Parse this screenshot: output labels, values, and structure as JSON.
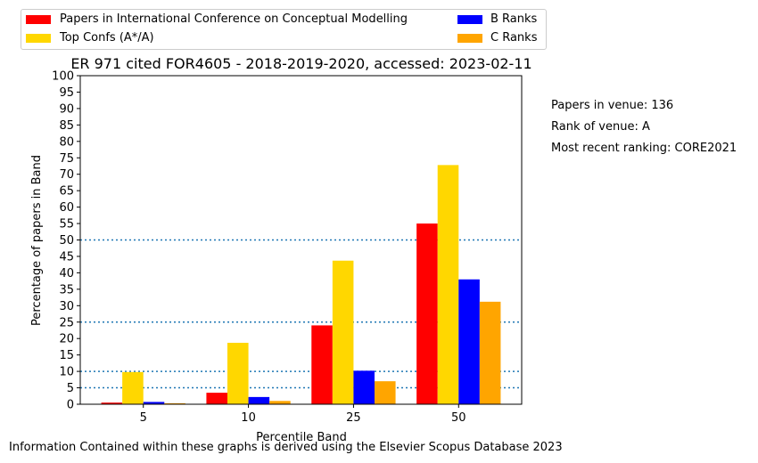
{
  "chart_data": {
    "type": "bar",
    "title": "ER 971 cited FOR4605 - 2018-2019-2020, accessed: 2023-02-11",
    "xlabel": "Percentile Band",
    "ylabel": "Percentage of papers in Band",
    "categories": [
      "5",
      "10",
      "25",
      "50"
    ],
    "ylim": [
      0,
      100
    ],
    "yticks": [
      0,
      5,
      10,
      15,
      20,
      25,
      30,
      35,
      40,
      45,
      50,
      55,
      60,
      65,
      70,
      75,
      80,
      85,
      90,
      95,
      100
    ],
    "reference_lines": [
      5,
      10,
      25,
      50
    ],
    "legend_position": "top, above plot, two columns",
    "series": [
      {
        "name": "Papers in International Conference on Conceptual Modelling",
        "color": "#ff0000",
        "values": [
          0.5,
          3.5,
          24.0,
          55.0
        ]
      },
      {
        "name": "Top Confs (A*/A)",
        "color": "#ffd700",
        "values": [
          9.8,
          18.7,
          43.7,
          72.8
        ]
      },
      {
        "name": "B Ranks",
        "color": "#0000ff",
        "values": [
          0.7,
          2.2,
          10.2,
          38.0
        ]
      },
      {
        "name": "C Ranks",
        "color": "#ffa500",
        "values": [
          0.3,
          1.0,
          7.0,
          31.2
        ]
      }
    ]
  },
  "side_notes": {
    "papers": "Papers in venue: 136",
    "rank": "Rank of venue: A",
    "ranking": "Most recent ranking: CORE2021"
  },
  "footer": "Information Contained within these graphs is derived using the Elsevier Scopus Database 2023",
  "reference_line_color": "#1f77b4"
}
